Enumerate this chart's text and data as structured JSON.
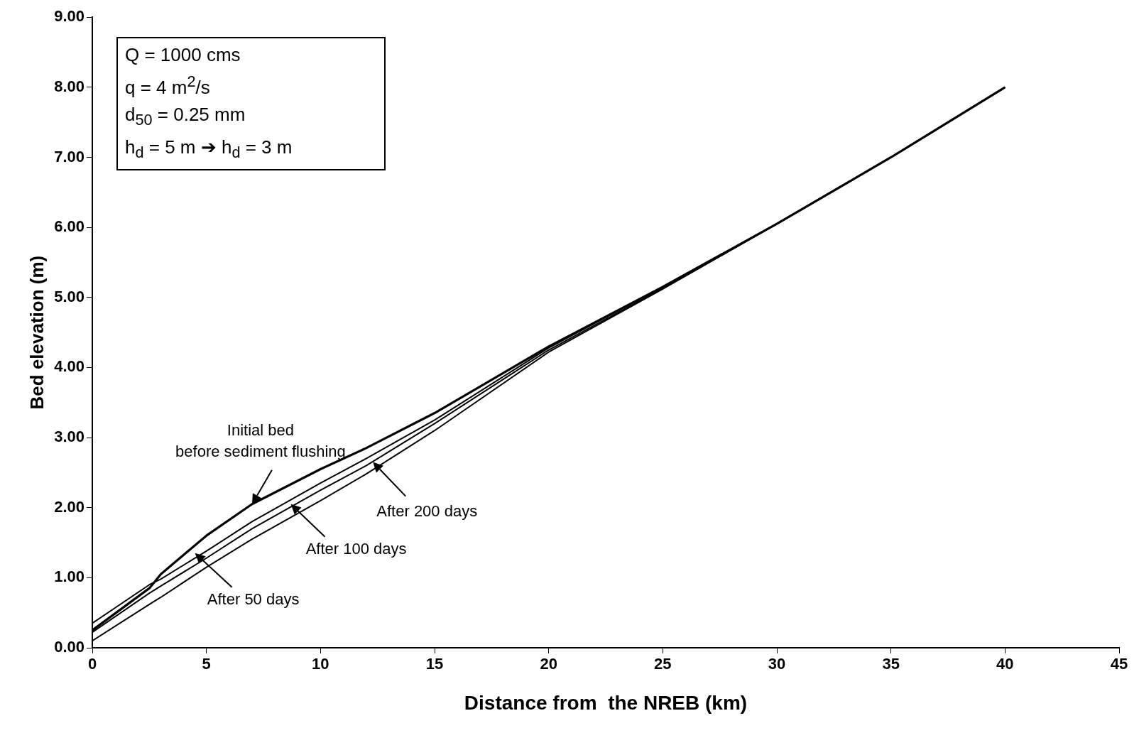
{
  "chart_data": {
    "type": "line",
    "xlabel": "Distance from  the NREB (km)",
    "ylabel": "Bed elevation (m)",
    "xlim": [
      0,
      45
    ],
    "xticks": [
      0,
      5,
      10,
      15,
      20,
      25,
      30,
      35,
      40,
      45
    ],
    "ylim": [
      0,
      9
    ],
    "yticks": [
      {
        "value": 0,
        "label": "0.00"
      },
      {
        "value": 1,
        "label": "1.00"
      },
      {
        "value": 2,
        "label": "2.00"
      },
      {
        "value": 3,
        "label": "3.00"
      },
      {
        "value": 4,
        "label": "4.00"
      },
      {
        "value": 5,
        "label": "5.00"
      },
      {
        "value": 6,
        "label": "6.00"
      },
      {
        "value": 7,
        "label": "7.00"
      },
      {
        "value": 8,
        "label": "8.00"
      },
      {
        "value": 9,
        "label": "9.00"
      }
    ],
    "grid": false,
    "legend": false,
    "marker": "none",
    "line_style": "solid",
    "x": [
      0,
      2.5,
      3,
      5,
      7,
      10,
      12,
      15,
      20,
      25,
      30,
      35,
      40
    ],
    "series": [
      {
        "color": "#000000",
        "values": [
          0.25,
          0.85,
          1.05,
          1.6,
          2.05,
          2.55,
          2.85,
          3.35,
          4.3,
          5.15,
          6.05,
          7.0,
          8.0
        ]
      },
      {
        "color": "#000000",
        "values": [
          0.35,
          0.9,
          0.98,
          1.38,
          1.8,
          2.35,
          2.7,
          3.25,
          4.28,
          5.15,
          6.05,
          7.0,
          8.0
        ]
      },
      {
        "color": "#000000",
        "values": [
          0.22,
          0.78,
          0.88,
          1.28,
          1.7,
          2.25,
          2.6,
          3.2,
          4.25,
          5.13,
          6.05,
          7.0,
          8.0
        ]
      },
      {
        "color": "#000000",
        "values": [
          0.1,
          0.62,
          0.72,
          1.15,
          1.55,
          2.1,
          2.48,
          3.1,
          4.22,
          5.12,
          6.05,
          7.0,
          8.0
        ]
      }
    ],
    "annotations": [
      "Q = 1000 cms",
      "q = 4 m$^{2}$/s",
      "d$_{50}$ = 0.25 mm",
      "h$_{d}$ = 5 m ➔ h$_{d}$ = 3 m",
      {
        "text": "Initial bed\nbefore sediment flushing",
        "x": 7,
        "y": 2.05
      },
      {
        "text": "After 50 days",
        "x": 4.5,
        "y": 1.35
      },
      {
        "text": "After 100 days",
        "x": 8.7,
        "y": 2.05
      },
      {
        "text": "After 200 days",
        "x": 12.3,
        "y": 2.65
      }
    ]
  }
}
